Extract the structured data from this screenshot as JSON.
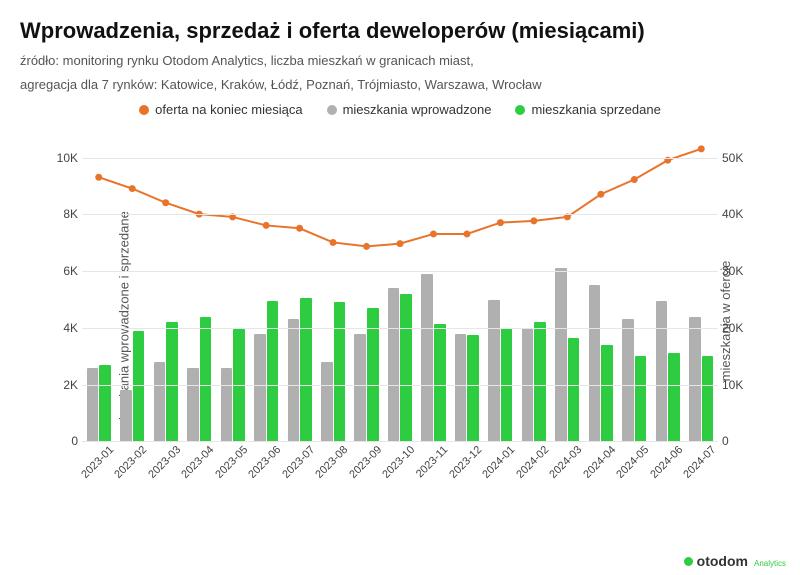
{
  "title": "Wprowadzenia, sprzedaż i oferta deweloperów (miesiącami)",
  "subtitle_line1": "źródło: monitoring rynku Otodom Analytics, liczba mieszkań w granicach miast,",
  "subtitle_line2": "agregacja dla 7 rynków: Katowice, Kraków, Łódź, Poznań, Trójmiasto, Warszawa, Wrocław",
  "legend": {
    "series1": "oferta na koniec miesiąca",
    "series2": "mieszkania wprowadzone",
    "series3": "mieszkania sprzedane"
  },
  "axis": {
    "left_label": "mieszkania wprowadzone i sprzedane",
    "right_label": "mieszkania w ofercie",
    "left": {
      "min": 0,
      "max": 11000,
      "ticks": [
        0,
        2000,
        4000,
        6000,
        8000,
        10000
      ],
      "tick_labels": [
        "0",
        "2K",
        "4K",
        "6K",
        "8K",
        "10K"
      ]
    },
    "right": {
      "min": 0,
      "max": 55000,
      "ticks": [
        0,
        10000,
        20000,
        30000,
        40000,
        50000
      ],
      "tick_labels": [
        "0",
        "10K",
        "20K",
        "30K",
        "40K",
        "50K"
      ]
    }
  },
  "colors": {
    "line": "#e8742c",
    "bar_introduced": "#b0b0b0",
    "bar_sold": "#2ecc40",
    "grid": "#e6e6e6",
    "bg": "#ffffff",
    "title": "#111111",
    "text": "#555555",
    "marker_radius": 3.5,
    "line_width": 2
  },
  "categories": [
    "2023-01",
    "2023-02",
    "2023-03",
    "2023-04",
    "2023-05",
    "2023-06",
    "2023-07",
    "2023-08",
    "2023-09",
    "2023-10",
    "2023-11",
    "2023-12",
    "2024-01",
    "2024-02",
    "2024-03",
    "2024-04",
    "2024-05",
    "2024-06",
    "2024-07"
  ],
  "introduced": [
    2600,
    1800,
    2800,
    2600,
    2600,
    3800,
    4300,
    2800,
    3800,
    5400,
    5900,
    3800,
    5000,
    4000,
    6100,
    5500,
    4300,
    4950,
    4400
  ],
  "sold": [
    2700,
    3900,
    4200,
    4400,
    3950,
    4950,
    5050,
    4900,
    4700,
    5200,
    4150,
    3750,
    4000,
    4200,
    3650,
    3400,
    3000,
    3100,
    3000
  ],
  "offer": [
    46500,
    44500,
    42000,
    40000,
    39500,
    38000,
    37500,
    35000,
    34300,
    34800,
    36500,
    36500,
    38500,
    38800,
    39500,
    43500,
    46100,
    49500,
    51500
  ],
  "logo": {
    "brand": "otodom",
    "sub": "Analytics"
  }
}
